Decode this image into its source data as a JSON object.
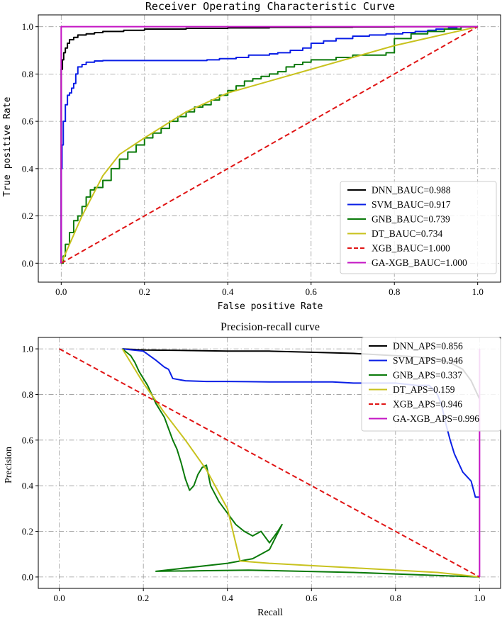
{
  "chart_data": [
    {
      "type": "line",
      "id": "roc",
      "title": "Receiver Operating Characteristic Curve",
      "xlabel": "False positive Rate",
      "ylabel": "True positive Rate",
      "xlim": [
        -0.055,
        1.055
      ],
      "ylim": [
        -0.08,
        1.05
      ],
      "xticks": [
        0.0,
        0.2,
        0.4,
        0.6,
        0.8,
        1.0
      ],
      "yticks": [
        0.0,
        0.2,
        0.4,
        0.6,
        0.8,
        1.0
      ],
      "xtick_labels": [
        "0.0",
        "0.2",
        "0.4",
        "0.6",
        "0.8",
        "1.0"
      ],
      "ytick_labels": [
        "0.0",
        "0.2",
        "0.4",
        "0.6",
        "0.8",
        "1.0"
      ],
      "grid": true,
      "legend_position": "lower-right",
      "series": [
        {
          "name": "DNN_BAUC=0.988",
          "color": "#000000",
          "step": true,
          "x": [
            0,
            0,
            0.003,
            0.006,
            0.01,
            0.015,
            0.02,
            0.03,
            0.04,
            0.06,
            0.08,
            0.1,
            0.15,
            0.2,
            0.3,
            0.4,
            0.5,
            0.6,
            0.7,
            0.8,
            1.0
          ],
          "y": [
            0,
            0.82,
            0.86,
            0.89,
            0.91,
            0.93,
            0.945,
            0.955,
            0.965,
            0.97,
            0.975,
            0.98,
            0.985,
            0.99,
            0.993,
            0.995,
            0.997,
            0.998,
            0.999,
            1.0,
            1.0
          ]
        },
        {
          "name": "SVM_BAUC=0.917",
          "color": "#0a1fe6",
          "step": true,
          "x": [
            0,
            0,
            0.002,
            0.005,
            0.01,
            0.015,
            0.02,
            0.025,
            0.03,
            0.035,
            0.04,
            0.05,
            0.06,
            0.08,
            0.1,
            0.15,
            0.2,
            0.25,
            0.3,
            0.35,
            0.38,
            0.42,
            0.45,
            0.5,
            0.52,
            0.55,
            0.58,
            0.6,
            0.63,
            0.66,
            0.7,
            0.74,
            0.78,
            0.82,
            0.85,
            0.88,
            0.9,
            0.93,
            0.95,
            1.0
          ],
          "y": [
            0,
            0.4,
            0.5,
            0.6,
            0.67,
            0.71,
            0.72,
            0.74,
            0.76,
            0.8,
            0.83,
            0.84,
            0.85,
            0.855,
            0.857,
            0.857,
            0.857,
            0.857,
            0.857,
            0.86,
            0.865,
            0.87,
            0.88,
            0.885,
            0.89,
            0.9,
            0.91,
            0.93,
            0.94,
            0.95,
            0.96,
            0.965,
            0.97,
            0.975,
            0.98,
            0.985,
            0.99,
            0.995,
            1.0,
            1.0
          ]
        },
        {
          "name": "GNB_BAUC=0.739",
          "color": "#0a7a0a",
          "step": true,
          "x": [
            0,
            0.005,
            0.01,
            0.02,
            0.03,
            0.04,
            0.05,
            0.06,
            0.07,
            0.08,
            0.1,
            0.12,
            0.14,
            0.16,
            0.18,
            0.2,
            0.22,
            0.24,
            0.26,
            0.28,
            0.3,
            0.32,
            0.34,
            0.36,
            0.38,
            0.4,
            0.42,
            0.44,
            0.46,
            0.48,
            0.5,
            0.52,
            0.54,
            0.56,
            0.58,
            0.6,
            0.63,
            0.66,
            0.7,
            0.74,
            0.78,
            0.8,
            0.84,
            0.88,
            0.92,
            0.96,
            1.0
          ],
          "y": [
            0,
            0.03,
            0.08,
            0.13,
            0.18,
            0.2,
            0.24,
            0.28,
            0.31,
            0.32,
            0.35,
            0.4,
            0.44,
            0.47,
            0.5,
            0.53,
            0.55,
            0.57,
            0.6,
            0.62,
            0.64,
            0.66,
            0.67,
            0.69,
            0.71,
            0.73,
            0.75,
            0.77,
            0.78,
            0.79,
            0.8,
            0.81,
            0.83,
            0.84,
            0.85,
            0.86,
            0.86,
            0.87,
            0.88,
            0.88,
            0.89,
            0.95,
            0.97,
            0.98,
            0.99,
            1.0,
            1.0
          ]
        },
        {
          "name": "DT_BAUC=0.734",
          "color": "#c8c21e",
          "step": false,
          "x": [
            0,
            0.02,
            0.05,
            0.1,
            0.14,
            0.2,
            0.3,
            0.4,
            0.5,
            0.6,
            0.7,
            0.8,
            0.9,
            1.0
          ],
          "y": [
            0,
            0.08,
            0.2,
            0.37,
            0.46,
            0.53,
            0.64,
            0.72,
            0.77,
            0.82,
            0.87,
            0.92,
            0.96,
            1.0
          ]
        },
        {
          "name": "XGB_BAUC=1.000",
          "color": "#e01414",
          "step": false,
          "dashed": true,
          "x": [
            0,
            1
          ],
          "y": [
            0,
            1
          ]
        },
        {
          "name": "GA-XGB_BAUC=1.000",
          "color": "#c414c4",
          "step": false,
          "x": [
            0,
            0,
            1
          ],
          "y": [
            0,
            1,
            1
          ]
        }
      ]
    },
    {
      "type": "line",
      "id": "pr",
      "title": "Precision-recall curve",
      "xlabel": "Recall",
      "ylabel": "Precision",
      "xlim": [
        -0.05,
        1.05
      ],
      "ylim": [
        -0.05,
        1.05
      ],
      "xticks": [
        0.0,
        0.2,
        0.4,
        0.6,
        0.8,
        1.0
      ],
      "yticks": [
        0.0,
        0.2,
        0.4,
        0.6,
        0.8,
        1.0
      ],
      "xtick_labels": [
        "0.0",
        "0.2",
        "0.4",
        "0.6",
        "0.8",
        "1.0"
      ],
      "ytick_labels": [
        "0.0",
        "0.2",
        "0.4",
        "0.6",
        "0.8",
        "1.0"
      ],
      "grid": true,
      "legend_position": "upper-right",
      "series": [
        {
          "name": "DNN_APS=0.856",
          "color": "#000000",
          "step": false,
          "x": [
            0.15,
            0.2,
            0.3,
            0.4,
            0.5,
            0.6,
            0.7,
            0.75,
            0.8,
            0.85,
            0.9,
            0.93,
            0.96,
            0.98,
            0.99,
            1.0
          ],
          "y": [
            1.0,
            0.995,
            0.993,
            0.99,
            0.99,
            0.985,
            0.98,
            0.975,
            0.97,
            0.965,
            0.955,
            0.94,
            0.91,
            0.86,
            0.82,
            0.78
          ]
        },
        {
          "name": "SVM_APS=0.946",
          "color": "#0a1fe6",
          "step": false,
          "x": [
            0.15,
            0.2,
            0.23,
            0.25,
            0.26,
            0.27,
            0.3,
            0.35,
            0.4,
            0.45,
            0.5,
            0.55,
            0.6,
            0.65,
            0.7,
            0.75,
            0.8,
            0.85,
            0.88,
            0.9,
            0.91,
            0.92,
            0.93,
            0.94,
            0.95,
            0.96,
            0.97,
            0.98,
            0.99,
            1.0
          ],
          "y": [
            1.0,
            0.99,
            0.95,
            0.92,
            0.91,
            0.87,
            0.86,
            0.857,
            0.857,
            0.856,
            0.855,
            0.855,
            0.855,
            0.855,
            0.85,
            0.85,
            0.85,
            0.84,
            0.84,
            0.8,
            0.75,
            0.67,
            0.6,
            0.54,
            0.5,
            0.46,
            0.44,
            0.42,
            0.35,
            0.35
          ]
        },
        {
          "name": "GNB_APS=0.337",
          "color": "#0a7a0a",
          "step": false,
          "x": [
            0.15,
            0.17,
            0.18,
            0.19,
            0.2,
            0.21,
            0.22,
            0.23,
            0.24,
            0.25,
            0.26,
            0.27,
            0.28,
            0.29,
            0.3,
            0.31,
            0.32,
            0.33,
            0.34,
            0.35,
            0.36,
            0.38,
            0.4,
            0.42,
            0.44,
            0.46,
            0.48,
            0.5,
            0.52,
            0.53,
            0.5,
            0.48,
            0.46,
            0.4,
            0.23,
            0.45,
            0.7,
            1.0
          ],
          "y": [
            1.0,
            0.97,
            0.94,
            0.9,
            0.87,
            0.84,
            0.8,
            0.76,
            0.73,
            0.7,
            0.65,
            0.6,
            0.56,
            0.5,
            0.43,
            0.38,
            0.4,
            0.45,
            0.48,
            0.49,
            0.4,
            0.33,
            0.28,
            0.23,
            0.2,
            0.18,
            0.2,
            0.15,
            0.2,
            0.23,
            0.12,
            0.1,
            0.08,
            0.06,
            0.025,
            0.03,
            0.02,
            0.0
          ]
        },
        {
          "name": "DT_APS=0.159",
          "color": "#c8c21e",
          "step": false,
          "x": [
            0.15,
            0.2,
            0.25,
            0.3,
            0.35,
            0.4,
            0.43,
            0.5,
            0.6,
            0.7,
            0.8,
            0.9,
            1.0
          ],
          "y": [
            1.0,
            0.85,
            0.72,
            0.6,
            0.47,
            0.3,
            0.07,
            0.06,
            0.05,
            0.04,
            0.03,
            0.02,
            0.0
          ]
        },
        {
          "name": "XGB_APS=0.946",
          "color": "#e01414",
          "step": false,
          "dashed": true,
          "x": [
            0,
            1
          ],
          "y": [
            1,
            0
          ]
        },
        {
          "name": "GA-XGB_APS=0.996",
          "color": "#c414c4",
          "step": false,
          "x": [
            1,
            1
          ],
          "y": [
            0,
            1
          ]
        }
      ]
    }
  ]
}
